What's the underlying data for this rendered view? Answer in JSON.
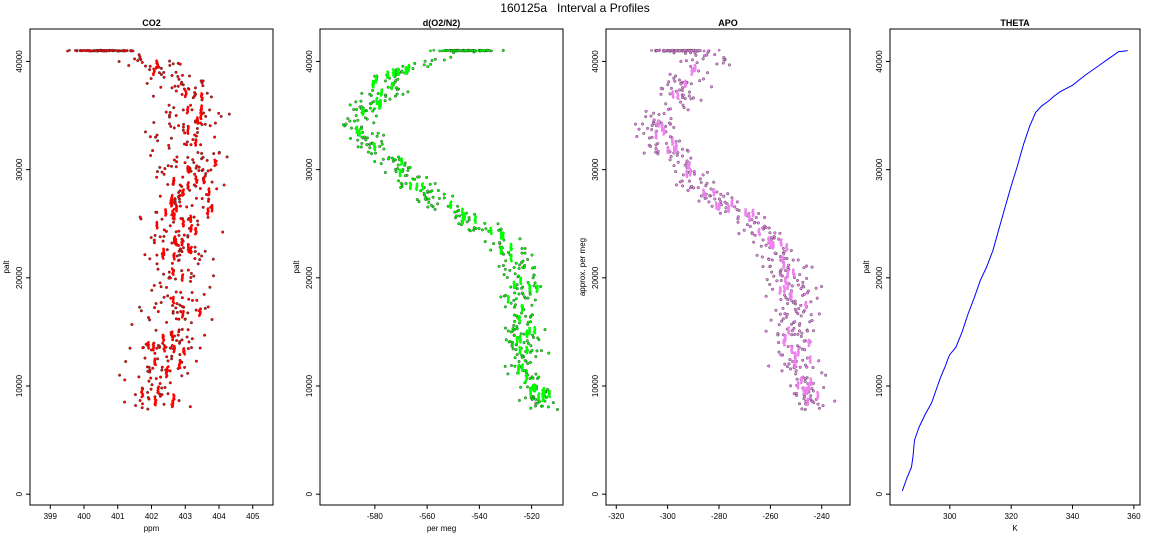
{
  "page": {
    "title": "160125a   Interval a Profiles"
  },
  "chart_data": [
    {
      "type": "scatter",
      "title": "CO2",
      "xlabel": "ppm",
      "ylabel": "palt",
      "xlim": [
        398.4,
        405.6
      ],
      "ylim": [
        -1000,
        43000
      ],
      "xticks": [
        399,
        400,
        401,
        402,
        403,
        404,
        405
      ],
      "yticks": [
        0,
        10000,
        20000,
        30000,
        40000
      ],
      "color": "#ff0000",
      "profile": [
        [
          402.4,
          7800
        ],
        [
          402.0,
          9500
        ],
        [
          402.3,
          12000
        ],
        [
          402.6,
          15000
        ],
        [
          402.7,
          18000
        ],
        [
          402.9,
          21000
        ],
        [
          402.9,
          24000
        ],
        [
          403.0,
          27000
        ],
        [
          403.2,
          30000
        ],
        [
          403.0,
          33000
        ],
        [
          403.2,
          36000
        ],
        [
          403.0,
          38000
        ],
        [
          402.0,
          39600
        ],
        [
          401.5,
          40300
        ],
        [
          400.6,
          40800
        ]
      ],
      "spread": 0.75
    },
    {
      "type": "scatter",
      "title": "d(O2/N2)",
      "xlabel": "per meg",
      "ylabel": "palt",
      "xlim": [
        -601,
        -508
      ],
      "ylim": [
        -1000,
        43000
      ],
      "xticks": [
        -580,
        -560,
        -540,
        -520
      ],
      "yticks": [
        0,
        10000,
        20000,
        30000,
        40000
      ],
      "color": "#00ff00",
      "profile": [
        [
          -515,
          7800
        ],
        [
          -521,
          10500
        ],
        [
          -522,
          13000
        ],
        [
          -524,
          16000
        ],
        [
          -524,
          19000
        ],
        [
          -527,
          22000
        ],
        [
          -538,
          24500
        ],
        [
          -553,
          26500
        ],
        [
          -565,
          28500
        ],
        [
          -572,
          30500
        ],
        [
          -583,
          32500
        ],
        [
          -585,
          34500
        ],
        [
          -577,
          36500
        ],
        [
          -575,
          38500
        ],
        [
          -560,
          40000
        ],
        [
          -548,
          40500
        ],
        [
          -545,
          40900
        ]
      ],
      "spread": 6
    },
    {
      "type": "scatter",
      "title": "APO",
      "xlabel": "",
      "ylabel": "approx. per meg",
      "xlim": [
        -324,
        -229
      ],
      "ylim": [
        -1000,
        43000
      ],
      "xticks": [
        -320,
        -300,
        -280,
        -260,
        -240
      ],
      "yticks": [
        0,
        10000,
        20000,
        30000,
        40000
      ],
      "color": "#ee82ee",
      "profile": [
        [
          -245,
          7800
        ],
        [
          -249,
          10500
        ],
        [
          -250,
          13000
        ],
        [
          -251,
          16000
        ],
        [
          -252,
          19000
        ],
        [
          -255,
          22000
        ],
        [
          -265,
          24500
        ],
        [
          -276,
          26500
        ],
        [
          -288,
          28500
        ],
        [
          -295,
          30500
        ],
        [
          -303,
          32500
        ],
        [
          -304,
          34500
        ],
        [
          -295,
          36500
        ],
        [
          -294,
          38500
        ],
        [
          -285,
          40000
        ],
        [
          -280,
          40500
        ],
        [
          -295,
          40900
        ]
      ],
      "spread": 7
    },
    {
      "type": "line",
      "title": "THETA",
      "xlabel": "K",
      "ylabel": "palt",
      "xlim": [
        280.5,
        362
      ],
      "ylim": [
        -1000,
        43000
      ],
      "xticks": [
        300,
        320,
        340,
        360
      ],
      "yticks": [
        0,
        10000,
        20000,
        30000,
        40000
      ],
      "color": "#0000ff",
      "x": [
        284.5,
        286,
        287.5,
        288,
        288.5,
        290,
        292,
        294,
        295,
        296,
        297,
        298.5,
        299.5,
        300,
        302,
        304,
        306,
        308,
        310,
        312,
        314,
        316,
        318,
        320,
        322,
        324,
        326,
        328,
        330,
        332,
        334,
        336,
        340,
        344,
        348,
        352,
        355,
        358
      ],
      "y": [
        300,
        1500,
        2500,
        3500,
        5000,
        6200,
        7400,
        8400,
        9200,
        10000,
        10800,
        11800,
        12600,
        12900,
        13600,
        15000,
        16700,
        18200,
        19800,
        21000,
        22500,
        24500,
        26500,
        28500,
        30300,
        32300,
        34000,
        35300,
        35900,
        36300,
        36800,
        37200,
        37800,
        38700,
        39500,
        40300,
        40900,
        41000
      ]
    }
  ]
}
